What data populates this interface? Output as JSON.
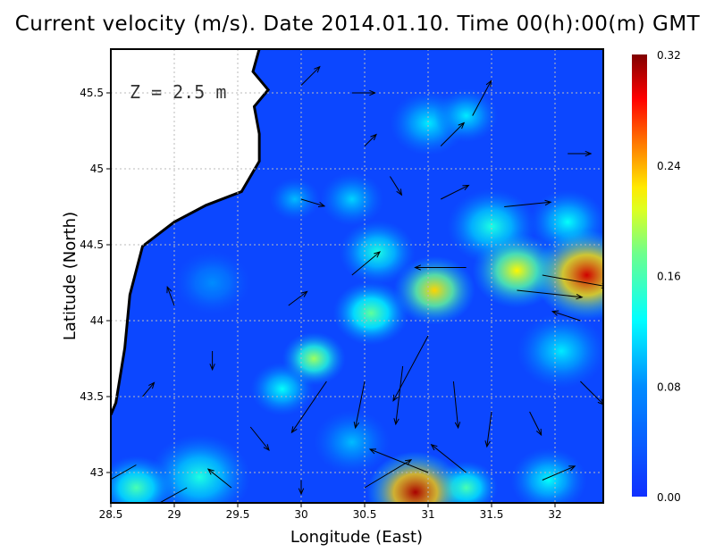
{
  "chart_data": {
    "type": "heatmap",
    "title": "Current velocity (m/s). Date 2014.01.10. Time 00(h):00(m) GMT",
    "annotation": "Z = 2.5 m",
    "xlabel": "Longitude (East)",
    "ylabel": "Latitude (North)",
    "xlim": [
      28.5,
      32.38
    ],
    "ylim": [
      42.81,
      45.79
    ],
    "xticks": [
      "28.5",
      "29",
      "29.5",
      "30",
      "30.5",
      "31",
      "31.5",
      "32"
    ],
    "yticks": [
      "43",
      "43.5",
      "44",
      "44.5",
      "45",
      "45.5"
    ],
    "grid": true,
    "colorbar": {
      "min": 0.0,
      "max": 0.32,
      "ticks": [
        "0.00",
        "0.08",
        "0.16",
        "0.24",
        "0.32"
      ],
      "colormap": "jet",
      "position": "right"
    },
    "background_speed": 0.02,
    "speed_hotspots": [
      {
        "lon": 30.9,
        "lat": 42.87,
        "speed": 0.31,
        "r": 0.38
      },
      {
        "lon": 32.25,
        "lat": 44.3,
        "speed": 0.3,
        "r": 0.42
      },
      {
        "lon": 31.7,
        "lat": 44.33,
        "speed": 0.22,
        "r": 0.35
      },
      {
        "lon": 31.05,
        "lat": 44.2,
        "speed": 0.23,
        "r": 0.32
      },
      {
        "lon": 30.55,
        "lat": 44.05,
        "speed": 0.17,
        "r": 0.3
      },
      {
        "lon": 30.1,
        "lat": 43.75,
        "speed": 0.19,
        "r": 0.25
      },
      {
        "lon": 29.85,
        "lat": 43.55,
        "speed": 0.13,
        "r": 0.25
      },
      {
        "lon": 30.6,
        "lat": 44.45,
        "speed": 0.14,
        "r": 0.3
      },
      {
        "lon": 31.5,
        "lat": 44.62,
        "speed": 0.14,
        "r": 0.35
      },
      {
        "lon": 32.1,
        "lat": 44.65,
        "speed": 0.13,
        "r": 0.3
      },
      {
        "lon": 31.0,
        "lat": 45.3,
        "speed": 0.12,
        "r": 0.3
      },
      {
        "lon": 31.3,
        "lat": 45.35,
        "speed": 0.12,
        "r": 0.25
      },
      {
        "lon": 30.4,
        "lat": 44.8,
        "speed": 0.11,
        "r": 0.25
      },
      {
        "lon": 29.95,
        "lat": 44.8,
        "speed": 0.1,
        "r": 0.2
      },
      {
        "lon": 29.2,
        "lat": 42.97,
        "speed": 0.14,
        "r": 0.4
      },
      {
        "lon": 28.7,
        "lat": 42.9,
        "speed": 0.16,
        "r": 0.3
      },
      {
        "lon": 32.05,
        "lat": 43.8,
        "speed": 0.12,
        "r": 0.35
      },
      {
        "lon": 31.95,
        "lat": 42.95,
        "speed": 0.13,
        "r": 0.3
      },
      {
        "lon": 31.3,
        "lat": 42.9,
        "speed": 0.16,
        "r": 0.25
      },
      {
        "lon": 29.3,
        "lat": 44.25,
        "speed": 0.08,
        "r": 0.3
      },
      {
        "lon": 30.4,
        "lat": 43.2,
        "speed": 0.1,
        "r": 0.3
      }
    ],
    "coastline": [
      [
        29.67,
        45.79
      ],
      [
        29.62,
        45.64
      ],
      [
        29.74,
        45.52
      ],
      [
        29.63,
        45.41
      ],
      [
        29.67,
        45.23
      ],
      [
        29.67,
        45.05
      ],
      [
        29.53,
        44.85
      ],
      [
        29.25,
        44.76
      ],
      [
        29.0,
        44.65
      ],
      [
        28.75,
        44.49
      ],
      [
        28.65,
        44.17
      ],
      [
        28.61,
        43.82
      ],
      [
        28.54,
        43.46
      ],
      [
        28.5,
        43.38
      ]
    ],
    "vectors": [
      {
        "lon": 29.1,
        "lat": 42.9,
        "u": -0.18,
        "v": -0.1
      },
      {
        "lon": 28.7,
        "lat": 43.05,
        "u": -0.14,
        "v": -0.08
      },
      {
        "lon": 29.45,
        "lat": 42.9,
        "u": -0.1,
        "v": 0.08
      },
      {
        "lon": 30.0,
        "lat": 42.95,
        "u": 0.0,
        "v": -0.06
      },
      {
        "lon": 30.5,
        "lat": 42.9,
        "u": 0.2,
        "v": 0.12
      },
      {
        "lon": 31.0,
        "lat": 43.0,
        "u": -0.25,
        "v": 0.1
      },
      {
        "lon": 31.3,
        "lat": 43.0,
        "u": -0.15,
        "v": 0.12
      },
      {
        "lon": 31.9,
        "lat": 42.95,
        "u": 0.14,
        "v": 0.06
      },
      {
        "lon": 30.2,
        "lat": 43.6,
        "u": -0.15,
        "v": -0.22
      },
      {
        "lon": 30.5,
        "lat": 43.6,
        "u": -0.04,
        "v": -0.2
      },
      {
        "lon": 30.8,
        "lat": 43.7,
        "u": -0.03,
        "v": -0.25
      },
      {
        "lon": 31.0,
        "lat": 43.9,
        "u": -0.15,
        "v": -0.28
      },
      {
        "lon": 31.2,
        "lat": 43.6,
        "u": 0.02,
        "v": -0.2
      },
      {
        "lon": 31.5,
        "lat": 43.4,
        "u": -0.02,
        "v": -0.15
      },
      {
        "lon": 31.8,
        "lat": 43.4,
        "u": 0.05,
        "v": -0.1
      },
      {
        "lon": 32.2,
        "lat": 43.6,
        "u": 0.1,
        "v": -0.1
      },
      {
        "lon": 29.6,
        "lat": 43.3,
        "u": 0.08,
        "v": -0.1
      },
      {
        "lon": 29.3,
        "lat": 43.8,
        "u": 0.0,
        "v": -0.08
      },
      {
        "lon": 29.0,
        "lat": 44.1,
        "u": -0.03,
        "v": 0.08
      },
      {
        "lon": 28.75,
        "lat": 43.5,
        "u": 0.05,
        "v": 0.06
      },
      {
        "lon": 29.9,
        "lat": 44.1,
        "u": 0.08,
        "v": 0.06
      },
      {
        "lon": 30.4,
        "lat": 44.3,
        "u": 0.12,
        "v": 0.1
      },
      {
        "lon": 31.3,
        "lat": 44.35,
        "u": -0.22,
        "v": 0.0
      },
      {
        "lon": 31.9,
        "lat": 44.3,
        "u": 0.28,
        "v": -0.05
      },
      {
        "lon": 31.7,
        "lat": 44.2,
        "u": 0.28,
        "v": -0.03
      },
      {
        "lon": 31.6,
        "lat": 44.75,
        "u": 0.2,
        "v": 0.02
      },
      {
        "lon": 31.1,
        "lat": 44.8,
        "u": 0.12,
        "v": 0.06
      },
      {
        "lon": 30.0,
        "lat": 44.8,
        "u": 0.1,
        "v": -0.03
      },
      {
        "lon": 30.4,
        "lat": 45.5,
        "u": 0.1,
        "v": 0.0
      },
      {
        "lon": 31.35,
        "lat": 45.35,
        "u": 0.08,
        "v": 0.15
      },
      {
        "lon": 31.1,
        "lat": 45.15,
        "u": 0.1,
        "v": 0.1
      },
      {
        "lon": 30.0,
        "lat": 45.55,
        "u": 0.08,
        "v": 0.08
      },
      {
        "lon": 30.5,
        "lat": 45.15,
        "u": 0.05,
        "v": 0.05
      },
      {
        "lon": 32.1,
        "lat": 45.1,
        "u": 0.1,
        "v": 0.0
      },
      {
        "lon": 32.2,
        "lat": 44.0,
        "u": -0.12,
        "v": 0.04
      },
      {
        "lon": 30.7,
        "lat": 44.95,
        "u": 0.05,
        "v": -0.08
      }
    ]
  }
}
